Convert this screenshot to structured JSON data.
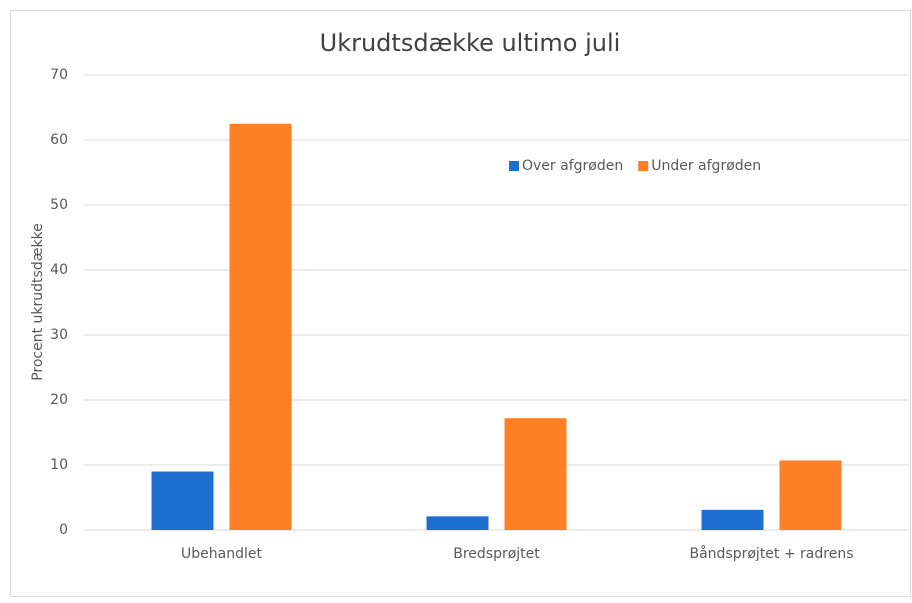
{
  "chart_data": {
    "type": "bar",
    "title": "Ukrudtsdække ultimo juli",
    "y_label": "Procent ukrudtsdække",
    "categories": [
      "Ubehandlet",
      "Bredsprøjtet",
      "Båndsprøjtet + radrens"
    ],
    "series": [
      {
        "name": "Over afgrøden",
        "color": "#1f6fd1",
        "values": [
          9,
          2.1,
          3.1
        ]
      },
      {
        "name": "Under afgrøden",
        "color": "#ff7f27",
        "values": [
          62.5,
          17.2,
          10.7
        ]
      }
    ],
    "ylim": [
      0,
      70
    ],
    "yticks": [
      0,
      10,
      20,
      30,
      40,
      50,
      60,
      70
    ],
    "grid": true,
    "legend": "upper-right"
  }
}
